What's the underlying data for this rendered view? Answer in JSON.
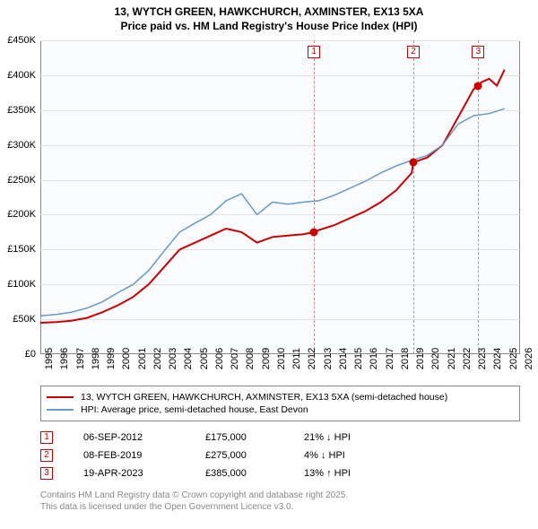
{
  "title_line1": "13, WYTCH GREEN, HAWKCHURCH, AXMINSTER, EX13 5XA",
  "title_line2": "Price paid vs. HM Land Registry's House Price Index (HPI)",
  "chart": {
    "type": "line",
    "plot_bg": "#fafcff",
    "grid_color": "#e4e4e4",
    "x_years": [
      1995,
      1996,
      1997,
      1998,
      1999,
      2000,
      2001,
      2002,
      2003,
      2004,
      2005,
      2006,
      2007,
      2008,
      2009,
      2010,
      2011,
      2012,
      2013,
      2014,
      2015,
      2016,
      2017,
      2018,
      2019,
      2020,
      2021,
      2022,
      2023,
      2024,
      2025,
      2026
    ],
    "y_min": 0,
    "y_max": 450000,
    "y_step": 50000,
    "y_labels": [
      "£0",
      "£50K",
      "£100K",
      "£150K",
      "£200K",
      "£250K",
      "£300K",
      "£350K",
      "£400K",
      "£450K"
    ],
    "series": [
      {
        "name": "property",
        "color": "#cc0000",
        "width": 2,
        "points": [
          [
            1995,
            45000
          ],
          [
            1996,
            46000
          ],
          [
            1997,
            48000
          ],
          [
            1998,
            52000
          ],
          [
            1999,
            60000
          ],
          [
            2000,
            70000
          ],
          [
            2001,
            82000
          ],
          [
            2002,
            100000
          ],
          [
            2003,
            125000
          ],
          [
            2004,
            150000
          ],
          [
            2005,
            160000
          ],
          [
            2006,
            170000
          ],
          [
            2007,
            180000
          ],
          [
            2008,
            175000
          ],
          [
            2009,
            160000
          ],
          [
            2010,
            168000
          ],
          [
            2011,
            170000
          ],
          [
            2012,
            172000
          ],
          [
            2012.68,
            175000
          ],
          [
            2013,
            178000
          ],
          [
            2014,
            185000
          ],
          [
            2015,
            195000
          ],
          [
            2016,
            205000
          ],
          [
            2017,
            218000
          ],
          [
            2018,
            235000
          ],
          [
            2019,
            260000
          ],
          [
            2019.1,
            275000
          ],
          [
            2020,
            282000
          ],
          [
            2021,
            300000
          ],
          [
            2022,
            340000
          ],
          [
            2023,
            380000
          ],
          [
            2023.3,
            385000
          ],
          [
            2023.5,
            390000
          ],
          [
            2024,
            395000
          ],
          [
            2024.5,
            385000
          ],
          [
            2025,
            408000
          ]
        ]
      },
      {
        "name": "hpi",
        "color": "#6699cc",
        "width": 1.5,
        "points": [
          [
            1995,
            55000
          ],
          [
            1996,
            57000
          ],
          [
            1997,
            60000
          ],
          [
            1998,
            66000
          ],
          [
            1999,
            75000
          ],
          [
            2000,
            88000
          ],
          [
            2001,
            100000
          ],
          [
            2002,
            120000
          ],
          [
            2003,
            148000
          ],
          [
            2004,
            175000
          ],
          [
            2005,
            188000
          ],
          [
            2006,
            200000
          ],
          [
            2007,
            220000
          ],
          [
            2008,
            230000
          ],
          [
            2009,
            200000
          ],
          [
            2010,
            218000
          ],
          [
            2011,
            215000
          ],
          [
            2012,
            218000
          ],
          [
            2013,
            220000
          ],
          [
            2014,
            228000
          ],
          [
            2015,
            238000
          ],
          [
            2016,
            248000
          ],
          [
            2017,
            260000
          ],
          [
            2018,
            270000
          ],
          [
            2019,
            278000
          ],
          [
            2020,
            285000
          ],
          [
            2021,
            300000
          ],
          [
            2022,
            330000
          ],
          [
            2023,
            342000
          ],
          [
            2024,
            345000
          ],
          [
            2025,
            352000
          ]
        ]
      }
    ],
    "markers": [
      {
        "num": "1",
        "year": 2012.68,
        "price": 175000
      },
      {
        "num": "2",
        "year": 2019.1,
        "price": 275000
      },
      {
        "num": "3",
        "year": 2023.3,
        "price": 385000
      }
    ]
  },
  "legend": {
    "items": [
      {
        "color": "#cc0000",
        "width": 2,
        "label": "13, WYTCH GREEN, HAWKCHURCH, AXMINSTER, EX13 5XA (semi-detached house)"
      },
      {
        "color": "#6699cc",
        "width": 1.5,
        "label": "HPI: Average price, semi-detached house, East Devon"
      }
    ]
  },
  "sales": [
    {
      "num": "1",
      "date": "06-SEP-2012",
      "price": "£175,000",
      "diff": "21% ↓ HPI"
    },
    {
      "num": "2",
      "date": "08-FEB-2019",
      "price": "£275,000",
      "diff": "4% ↓ HPI"
    },
    {
      "num": "3",
      "date": "19-APR-2023",
      "price": "£385,000",
      "diff": "13% ↑ HPI"
    }
  ],
  "footer_line1": "Contains HM Land Registry data © Crown copyright and database right 2025.",
  "footer_line2": "This data is licensed under the Open Government Licence v3.0."
}
